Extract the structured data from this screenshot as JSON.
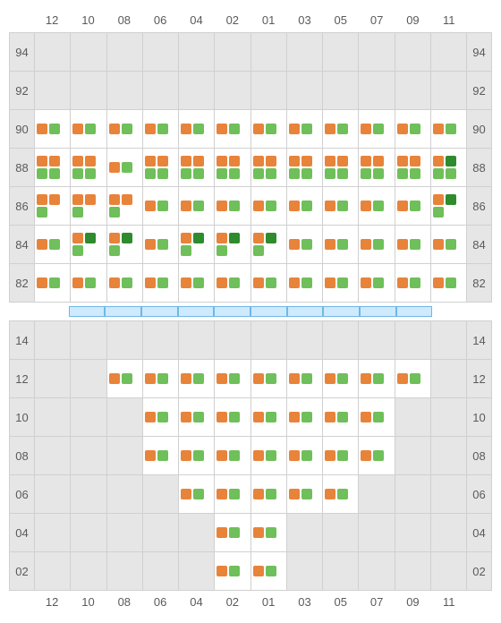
{
  "colors": {
    "empty_bg": "#e6e6e6",
    "populated_bg": "#ffffff",
    "grid_border": "#d0d0d0",
    "label_text": "#5a5a5a",
    "orange": "#e8833a",
    "light_green": "#6fbf5a",
    "dark_green": "#2e8b2e",
    "divider_fill": "#cfeafd",
    "divider_border": "#6fb7e8"
  },
  "column_labels": [
    "12",
    "10",
    "08",
    "06",
    "04",
    "02",
    "01",
    "03",
    "05",
    "07",
    "09",
    "11"
  ],
  "top": {
    "row_labels": [
      "94",
      "92",
      "90",
      "88",
      "86",
      "84",
      "82"
    ],
    "cells": {
      "94": [
        null,
        null,
        null,
        null,
        null,
        null,
        null,
        null,
        null,
        null,
        null,
        null
      ],
      "92": [
        null,
        null,
        null,
        null,
        null,
        null,
        null,
        null,
        null,
        null,
        null,
        null
      ],
      "90": [
        [
          "o",
          "lg"
        ],
        [
          "o",
          "lg"
        ],
        [
          "o",
          "lg"
        ],
        [
          "o",
          "lg"
        ],
        [
          "o",
          "lg"
        ],
        [
          "o",
          "lg"
        ],
        [
          "o",
          "lg"
        ],
        [
          "o",
          "lg"
        ],
        [
          "o",
          "lg"
        ],
        [
          "o",
          "lg"
        ],
        [
          "o",
          "lg"
        ],
        [
          "o",
          "lg"
        ]
      ],
      "88": [
        [
          "o",
          "o",
          "lg",
          "lg"
        ],
        [
          "o",
          "o",
          "lg",
          "lg"
        ],
        [
          "o",
          "lg"
        ],
        [
          "o",
          "o",
          "lg",
          "lg"
        ],
        [
          "o",
          "o",
          "lg",
          "lg"
        ],
        [
          "o",
          "o",
          "lg",
          "lg"
        ],
        [
          "o",
          "o",
          "lg",
          "lg"
        ],
        [
          "o",
          "o",
          "lg",
          "lg"
        ],
        [
          "o",
          "o",
          "lg",
          "lg"
        ],
        [
          "o",
          "o",
          "lg",
          "lg"
        ],
        [
          "o",
          "o",
          "lg",
          "lg"
        ],
        [
          "o",
          "dg",
          "lg",
          "lg"
        ]
      ],
      "86": [
        [
          "o",
          "o",
          "lg"
        ],
        [
          "o",
          "o",
          "lg"
        ],
        [
          "o",
          "o",
          "lg"
        ],
        [
          "o",
          "lg"
        ],
        [
          "o",
          "lg"
        ],
        [
          "o",
          "lg"
        ],
        [
          "o",
          "lg"
        ],
        [
          "o",
          "lg"
        ],
        [
          "o",
          "lg"
        ],
        [
          "o",
          "lg"
        ],
        [
          "o",
          "lg"
        ],
        [
          "o",
          "dg",
          "lg"
        ]
      ],
      "84": [
        [
          "o",
          "lg"
        ],
        [
          "o",
          "dg",
          "lg"
        ],
        [
          "o",
          "dg",
          "lg"
        ],
        [
          "o",
          "lg"
        ],
        [
          "o",
          "dg",
          "lg"
        ],
        [
          "o",
          "dg",
          "lg"
        ],
        [
          "o",
          "dg",
          "lg"
        ],
        [
          "o",
          "lg"
        ],
        [
          "o",
          "lg"
        ],
        [
          "o",
          "lg"
        ],
        [
          "o",
          "lg"
        ],
        [
          "o",
          "lg"
        ]
      ],
      "82": [
        [
          "o",
          "lg"
        ],
        [
          "o",
          "lg"
        ],
        [
          "o",
          "lg"
        ],
        [
          "o",
          "lg"
        ],
        [
          "o",
          "lg"
        ],
        [
          "o",
          "lg"
        ],
        [
          "o",
          "lg"
        ],
        [
          "o",
          "lg"
        ],
        [
          "o",
          "lg"
        ],
        [
          "o",
          "lg"
        ],
        [
          "o",
          "lg"
        ],
        [
          "o",
          "lg"
        ]
      ]
    }
  },
  "divider": {
    "span_cols_start": 1,
    "span_cols_end": 10
  },
  "bottom": {
    "row_labels": [
      "14",
      "12",
      "10",
      "08",
      "06",
      "04",
      "02"
    ],
    "cells": {
      "14": [
        null,
        null,
        null,
        null,
        null,
        null,
        null,
        null,
        null,
        null,
        null,
        null
      ],
      "12": [
        null,
        null,
        [
          "o",
          "lg"
        ],
        [
          "o",
          "lg"
        ],
        [
          "o",
          "lg"
        ],
        [
          "o",
          "lg"
        ],
        [
          "o",
          "lg"
        ],
        [
          "o",
          "lg"
        ],
        [
          "o",
          "lg"
        ],
        [
          "o",
          "lg"
        ],
        [
          "o",
          "lg"
        ],
        null
      ],
      "10": [
        null,
        null,
        null,
        [
          "o",
          "lg"
        ],
        [
          "o",
          "lg"
        ],
        [
          "o",
          "lg"
        ],
        [
          "o",
          "lg"
        ],
        [
          "o",
          "lg"
        ],
        [
          "o",
          "lg"
        ],
        [
          "o",
          "lg"
        ],
        null,
        null
      ],
      "08": [
        null,
        null,
        null,
        [
          "o",
          "lg"
        ],
        [
          "o",
          "lg"
        ],
        [
          "o",
          "lg"
        ],
        [
          "o",
          "lg"
        ],
        [
          "o",
          "lg"
        ],
        [
          "o",
          "lg"
        ],
        [
          "o",
          "lg"
        ],
        null,
        null
      ],
      "06": [
        null,
        null,
        null,
        null,
        [
          "o",
          "lg"
        ],
        [
          "o",
          "lg"
        ],
        [
          "o",
          "lg"
        ],
        [
          "o",
          "lg"
        ],
        [
          "o",
          "lg"
        ],
        null,
        null,
        null
      ],
      "04": [
        null,
        null,
        null,
        null,
        null,
        [
          "o",
          "lg"
        ],
        [
          "o",
          "lg"
        ],
        null,
        null,
        null,
        null,
        null
      ],
      "02": [
        null,
        null,
        null,
        null,
        null,
        [
          "o",
          "lg"
        ],
        [
          "o",
          "lg"
        ],
        null,
        null,
        null,
        null,
        null
      ]
    }
  }
}
